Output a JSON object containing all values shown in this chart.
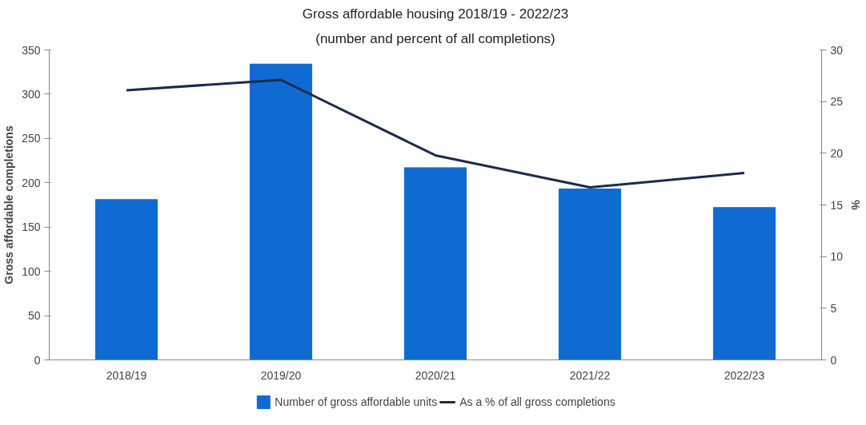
{
  "chart_data": {
    "type": "bar",
    "title": "Gross affordable housing 2018/19 - 2022/23",
    "subtitle": "(number and percent of all completions)",
    "ylabel": "Gross affordable completions",
    "y2label": "%",
    "categories": [
      "2018/19",
      "2019/20",
      "2020/21",
      "2021/22",
      "2022/23"
    ],
    "series": [
      {
        "name": "Number of gross affordable units",
        "color": "#0f6ad1",
        "values": [
          181,
          334,
          217,
          193,
          172
        ]
      },
      {
        "name": "As a % of all gross completions",
        "color": "#1c2b4c",
        "type": "line",
        "axis": "y2",
        "values": [
          26.1,
          27.1,
          19.8,
          16.7,
          18.1
        ]
      }
    ],
    "ylim": [
      0,
      350
    ],
    "yticks": [
      0,
      50,
      100,
      150,
      200,
      250,
      300,
      350
    ],
    "y2lim": [
      0,
      30
    ],
    "y2ticks": [
      0,
      5,
      10,
      15,
      20,
      25,
      30
    ],
    "grid": false,
    "legend": "bottom",
    "marker": "none",
    "line_style": "solid"
  }
}
